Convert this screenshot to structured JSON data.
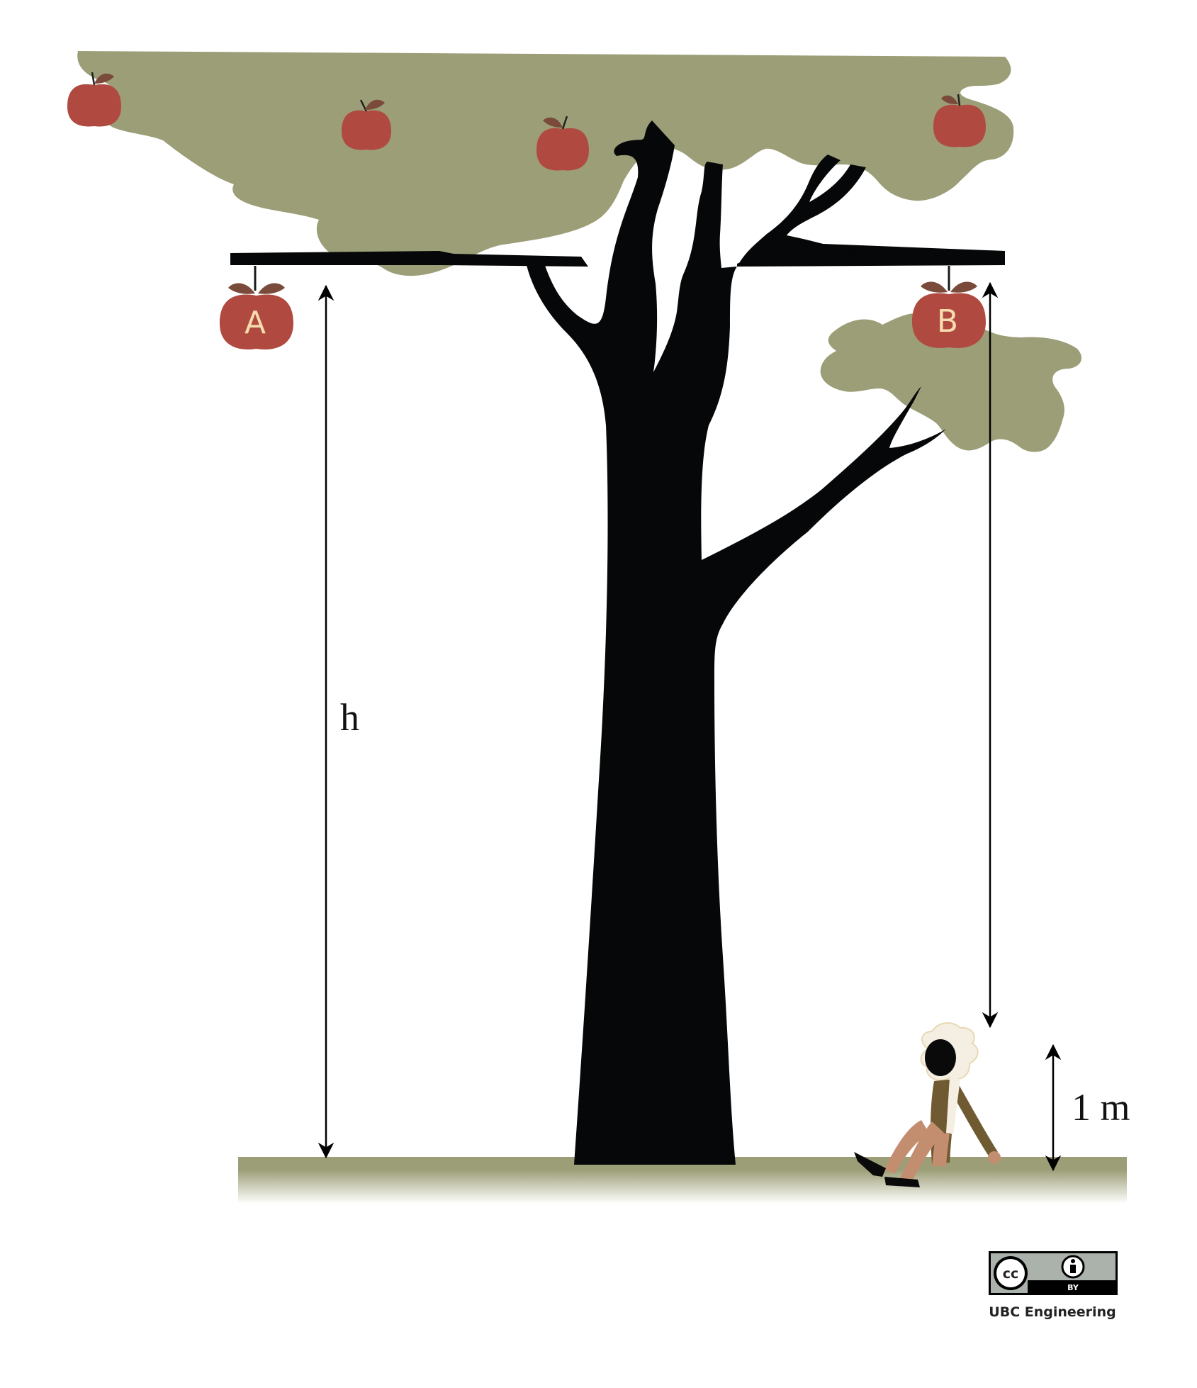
{
  "labels": {
    "apple_a": "A",
    "apple_b": "B",
    "height_h": "h",
    "height_1m": "1 m"
  },
  "license": {
    "badge_cc": "cc",
    "badge_by": "BY",
    "credit": "UBC Engineering"
  },
  "colors": {
    "foliage": "#9c9e77",
    "apple": "#b04a40",
    "trunk": "#060708",
    "ground": "#9c9e77",
    "label_text": "#f6dcae"
  }
}
